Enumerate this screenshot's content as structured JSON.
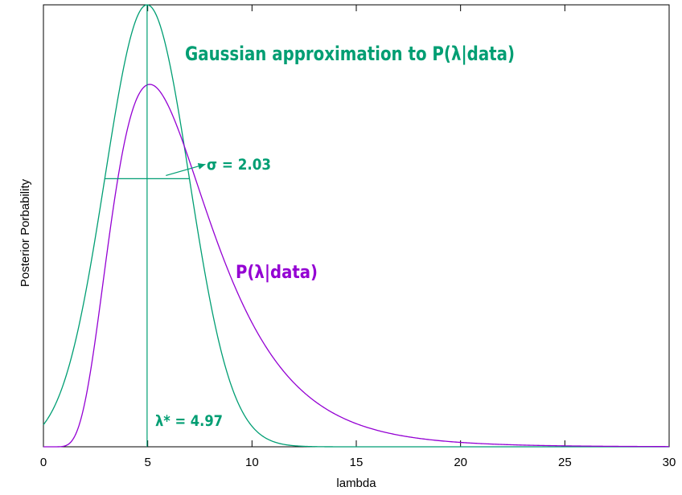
{
  "chart_data": {
    "type": "line",
    "xlabel": "lambda",
    "ylabel": "Posterior Porbability",
    "xlim": [
      0,
      30
    ],
    "ylim": [
      0,
      1.0
    ],
    "xticks": [
      0,
      5,
      10,
      15,
      20,
      25,
      30
    ],
    "grid": false,
    "series": [
      {
        "name": "Gaussian approximation to P(λ|data)",
        "color": "#009e73",
        "mode": "gaussian",
        "mean": 4.97,
        "sigma": 2.03,
        "peak": 1.0
      },
      {
        "name": "P(λ|data)",
        "color": "#9400d3",
        "mode": "lognormal",
        "median": 6.3,
        "shape": 0.46,
        "peak": 0.82
      }
    ],
    "annotations": {
      "sigma_label": "σ = 2.03",
      "lambda_star_label": "λ* = 4.97",
      "lambda_star": 4.97,
      "sigma": 2.03
    },
    "colors": {
      "gaussian": "#009e73",
      "posterior": "#9400d3"
    }
  }
}
